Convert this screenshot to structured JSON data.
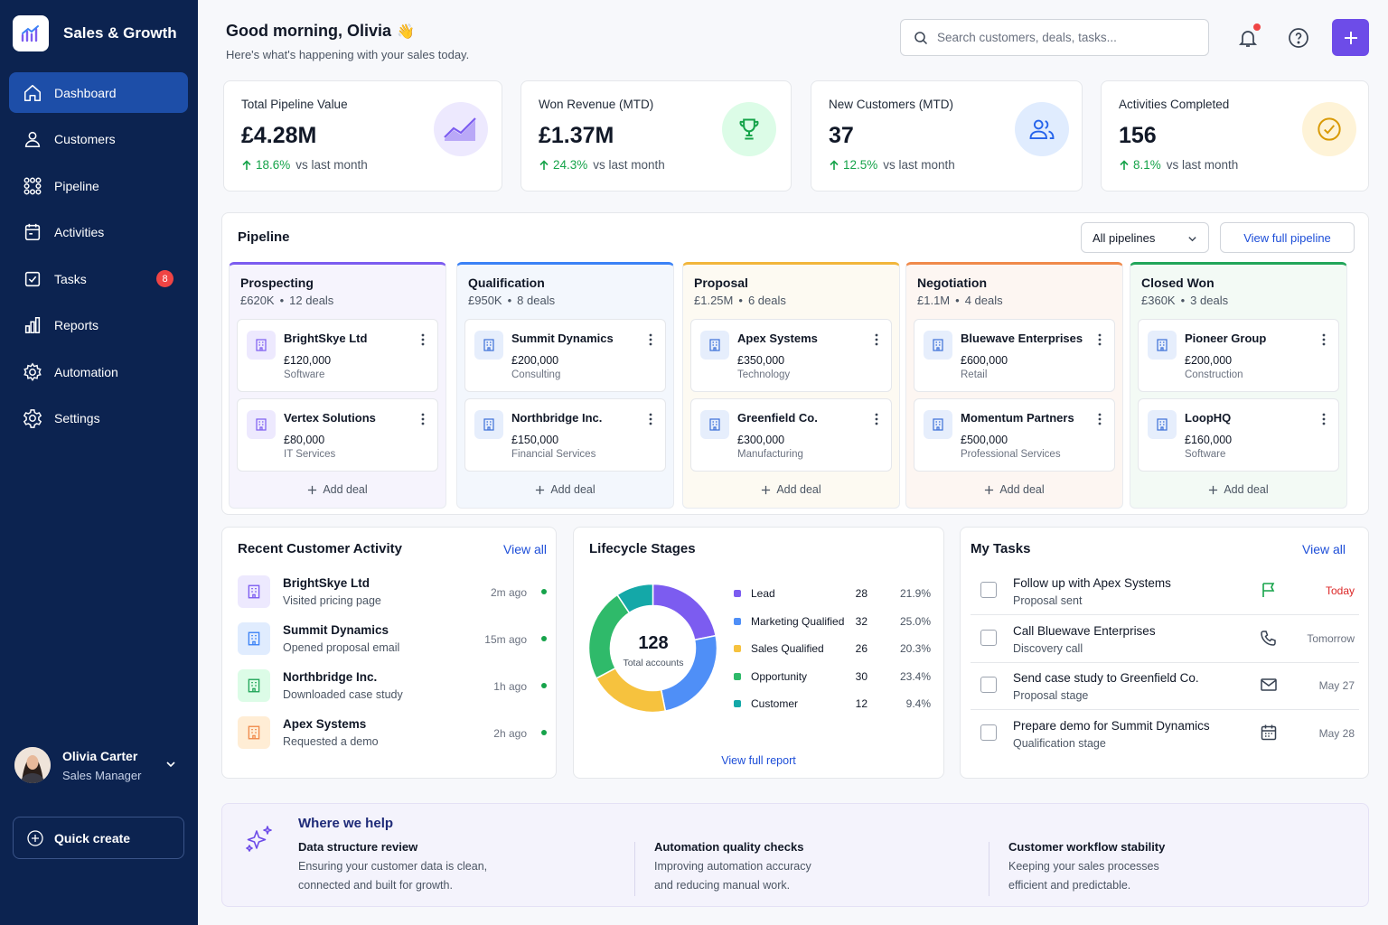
{
  "app": {
    "name": "Sales & Growth"
  },
  "nav": [
    {
      "label": "Dashboard",
      "icon": "home-icon",
      "active": true
    },
    {
      "label": "Customers",
      "icon": "user-icon"
    },
    {
      "label": "Pipeline",
      "icon": "pipeline-icon"
    },
    {
      "label": "Activities",
      "icon": "calendar-icon"
    },
    {
      "label": "Tasks",
      "icon": "checkbox-icon",
      "badge": "8"
    },
    {
      "label": "Reports",
      "icon": "bar-chart-icon"
    },
    {
      "label": "Automation",
      "icon": "gear-icon"
    },
    {
      "label": "Settings",
      "icon": "settings-icon"
    }
  ],
  "user": {
    "name": "Olivia Carter",
    "role": "Sales Manager"
  },
  "quick_create": "Quick create",
  "header": {
    "greeting": "Good morning, Olivia",
    "wave": "👋",
    "subtitle": "Here's what's happening with your sales today.",
    "search_placeholder": "Search customers, deals, tasks..."
  },
  "kpis": [
    {
      "title": "Total Pipeline Value",
      "value": "£4.28M",
      "change": "18.6%",
      "vs": "vs last month",
      "icon": "trend-chart-icon",
      "color": "#ede9fe"
    },
    {
      "title": "Won Revenue (MTD)",
      "value": "£1.37M",
      "change": "24.3%",
      "vs": "vs last month",
      "icon": "trophy-icon",
      "color": "#dcfce7"
    },
    {
      "title": "New Customers (MTD)",
      "value": "37",
      "change": "12.5%",
      "vs": "vs last month",
      "icon": "users-icon",
      "color": "#e0ecfe"
    },
    {
      "title": "Activities Completed",
      "value": "156",
      "change": "8.1%",
      "vs": "vs last month",
      "icon": "check-circle-icon",
      "color": "#fef3d7"
    }
  ],
  "pipeline": {
    "title": "Pipeline",
    "filter": "All pipelines",
    "view_full": "View full pipeline",
    "add_deal": "Add deal",
    "stages": [
      {
        "name": "Prospecting",
        "total": "£620K",
        "deals": "12 deals",
        "color": "#7c5cf0",
        "items": [
          {
            "name": "BrightSkye Ltd",
            "amount": "£120,000",
            "industry": "Software"
          },
          {
            "name": "Vertex Solutions",
            "amount": "£80,000",
            "industry": "IT Services"
          }
        ]
      },
      {
        "name": "Qualification",
        "total": "£950K",
        "deals": "8 deals",
        "color": "#3b82f6",
        "items": [
          {
            "name": "Summit Dynamics",
            "amount": "£200,000",
            "industry": "Consulting"
          },
          {
            "name": "Northbridge Inc.",
            "amount": "£150,000",
            "industry": "Financial Services"
          }
        ]
      },
      {
        "name": "Proposal",
        "total": "£1.25M",
        "deals": "6 deals",
        "color": "#f2b63c",
        "items": [
          {
            "name": "Apex Systems",
            "amount": "£350,000",
            "industry": "Technology"
          },
          {
            "name": "Greenfield Co.",
            "amount": "£300,000",
            "industry": "Manufacturing"
          }
        ]
      },
      {
        "name": "Negotiation",
        "total": "£1.1M",
        "deals": "4 deals",
        "color": "#f08a4b",
        "items": [
          {
            "name": "Bluewave Enterprises",
            "amount": "£600,000",
            "industry": "Retail"
          },
          {
            "name": "Momentum Partners",
            "amount": "£500,000",
            "industry": "Professional Services"
          }
        ]
      },
      {
        "name": "Closed Won",
        "total": "£360K",
        "deals": "3 deals",
        "color": "#22a55a",
        "items": [
          {
            "name": "Pioneer Group",
            "amount": "£200,000",
            "industry": "Construction"
          },
          {
            "name": "LoopHQ",
            "amount": "£160,000",
            "industry": "Software"
          }
        ]
      }
    ]
  },
  "activity": {
    "title": "Recent Customer Activity",
    "view_all": "View all",
    "items": [
      {
        "name": "BrightSkye Ltd",
        "desc": "Visited pricing page",
        "time": "2m ago",
        "color": "#ede9fe",
        "icon_color": "#7c5cf0"
      },
      {
        "name": "Summit Dynamics",
        "desc": "Opened proposal email",
        "time": "15m ago",
        "color": "#e0ecfe",
        "icon_color": "#3b82f6"
      },
      {
        "name": "Northbridge Inc.",
        "desc": "Downloaded case study",
        "time": "1h ago",
        "color": "#dcfce7",
        "icon_color": "#22a55a"
      },
      {
        "name": "Apex Systems",
        "desc": "Requested a demo",
        "time": "2h ago",
        "color": "#ffedd5",
        "icon_color": "#f08a4b"
      }
    ]
  },
  "lifecycle": {
    "title": "Lifecycle Stages",
    "total": "128",
    "total_label": "Total accounts",
    "view_report": "View full report",
    "stages": [
      {
        "label": "Lead",
        "count": 28,
        "pct": "21.9%",
        "color": "#7c5cf0"
      },
      {
        "label": "Marketing Qualified",
        "count": 32,
        "pct": "25.0%",
        "color": "#4f8ff7"
      },
      {
        "label": "Sales Qualified",
        "count": 26,
        "pct": "20.3%",
        "color": "#f6c23e"
      },
      {
        "label": "Opportunity",
        "count": 30,
        "pct": "23.4%",
        "color": "#2fba6a"
      },
      {
        "label": "Customer",
        "count": 12,
        "pct": "9.4%",
        "color": "#14a8a8"
      }
    ]
  },
  "tasks": {
    "title": "My Tasks",
    "view_all": "View all",
    "items": [
      {
        "title": "Follow up with Apex Systems",
        "sub": "Proposal sent",
        "due": "Today",
        "icon": "flag-icon"
      },
      {
        "title": "Call Bluewave Enterprises",
        "sub": "Discovery call",
        "due": "Tomorrow",
        "icon": "phone-icon"
      },
      {
        "title": "Send case study to Greenfield Co.",
        "sub": "Proposal stage",
        "due": "May 27",
        "icon": "mail-icon"
      },
      {
        "title": "Prepare demo for Summit Dynamics",
        "sub": "Qualification stage",
        "due": "May 28",
        "icon": "calendar-icon"
      }
    ]
  },
  "help": {
    "title": "Where we help",
    "cols": [
      {
        "title": "Data structure review",
        "text": "Ensuring your customer data is clean, connected and built for growth."
      },
      {
        "title": "Automation quality checks",
        "text": "Improving automation accuracy and reducing manual work."
      },
      {
        "title": "Customer workflow stability",
        "text": "Keeping your sales processes efficient and predictable."
      }
    ]
  }
}
